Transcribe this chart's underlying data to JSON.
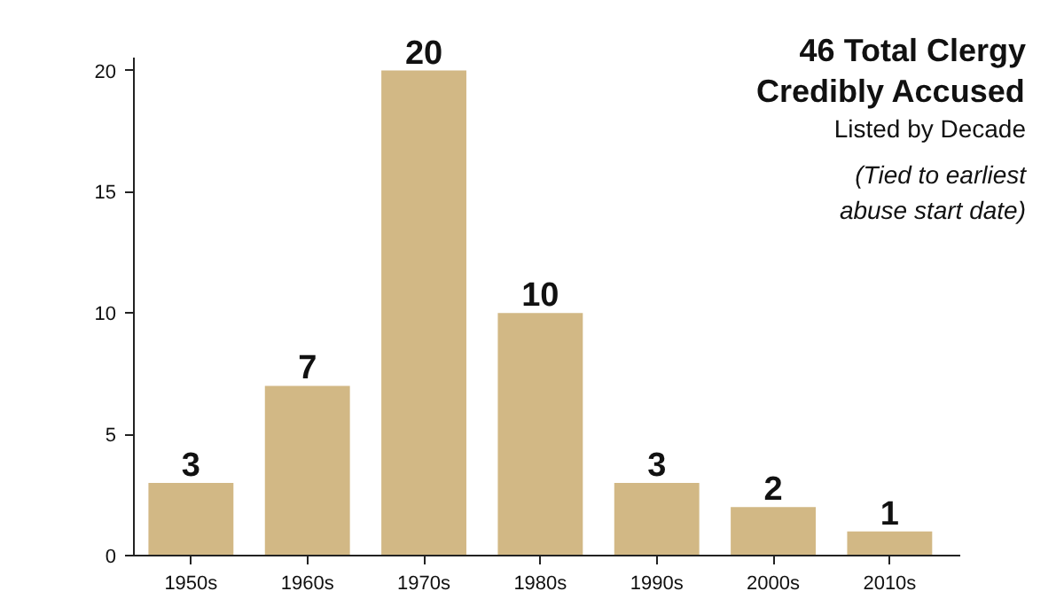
{
  "chart_data": {
    "type": "bar",
    "title": "46 Total Clergy Credibly Accused",
    "subtitle": "Listed by Decade",
    "annotations": [
      "(Tied to earliest abuse start date)"
    ],
    "categories": [
      "1950s",
      "1960s",
      "1970s",
      "1980s",
      "1990s",
      "2000s",
      "2010s"
    ],
    "values": [
      3,
      7,
      20,
      10,
      3,
      2,
      1
    ],
    "color": "#d2b885",
    "ylim": [
      0,
      20.5
    ],
    "yticks": [
      0,
      5,
      10,
      15,
      20
    ],
    "grid": false,
    "data_labels": true
  }
}
